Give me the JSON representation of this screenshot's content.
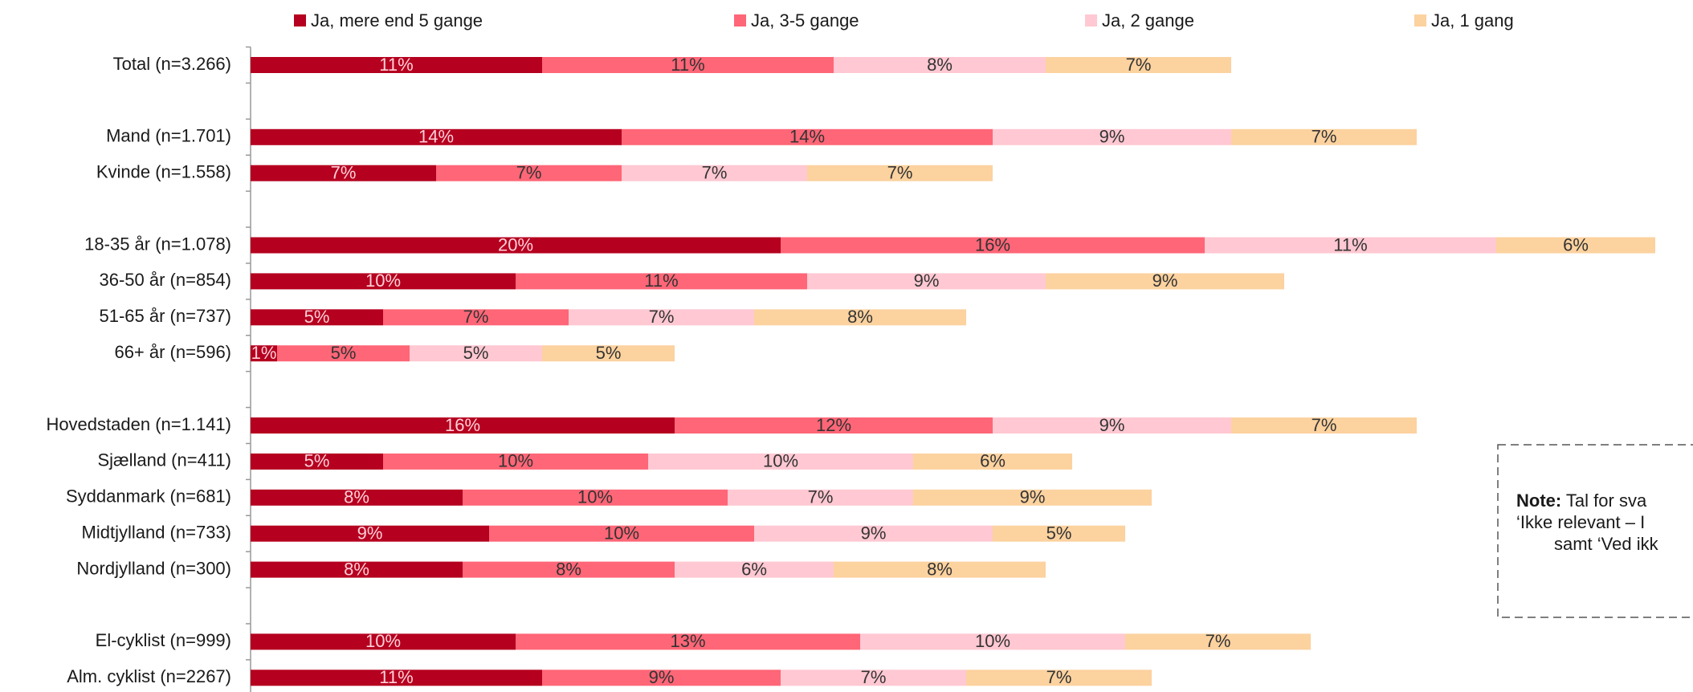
{
  "chart_data": {
    "type": "stacked-bar-horizontal",
    "categories": [
      "Total (n=3.266)",
      null,
      "Mand (n=1.701)",
      "Kvinde (n=1.558)",
      null,
      "18-35 år (n=1.078)",
      "36-50 år (n=854)",
      "51-65 år (n=737)",
      "66+ år (n=596)",
      null,
      "Hovedstaden (n=1.141)",
      "Sjælland (n=411)",
      "Syddanmark (n=681)",
      "Midtjylland (n=733)",
      "Nordjylland (n=300)",
      null,
      "El-cyklist (n=999)",
      "Alm. cyklist (n=2267)"
    ],
    "series": [
      {
        "name": "Ja, mere end 5 gange",
        "color": "#b5001f",
        "values": [
          11,
          null,
          14,
          7,
          null,
          20,
          10,
          5,
          1,
          null,
          16,
          5,
          8,
          9,
          8,
          null,
          10,
          11
        ],
        "value_labels": [
          "11%",
          null,
          "14%",
          "7%",
          null,
          "20%",
          "10%",
          "5%",
          "1%",
          null,
          "16%",
          "5%",
          "8%",
          "9%",
          "8%",
          null,
          "10%",
          "11%"
        ]
      },
      {
        "name": "Ja, 3-5 gange",
        "color": "#ff6677",
        "values": [
          11,
          null,
          14,
          7,
          null,
          16,
          11,
          7,
          5,
          null,
          12,
          10,
          10,
          10,
          8,
          null,
          13,
          9
        ],
        "value_labels": [
          "11%",
          null,
          "14%",
          "7%",
          null,
          "16%",
          "11%",
          "7%",
          "5%",
          null,
          "12%",
          "10%",
          "10%",
          "10%",
          "8%",
          null,
          "13%",
          "9%"
        ]
      },
      {
        "name": "Ja, 2 gange",
        "color": "#ffc8d2",
        "values": [
          8,
          null,
          9,
          7,
          null,
          11,
          9,
          7,
          5,
          null,
          9,
          10,
          7,
          9,
          6,
          null,
          10,
          7
        ],
        "value_labels": [
          "8%",
          null,
          "9%",
          "7%",
          null,
          "11%",
          "9%",
          "7%",
          "5%",
          null,
          "9%",
          "10%",
          "7%",
          "9%",
          "6%",
          null,
          "10%",
          "7%"
        ]
      },
      {
        "name": "Ja, 1 gang",
        "color": "#fcd29f",
        "values": [
          7,
          null,
          7,
          7,
          null,
          6,
          9,
          8,
          5,
          null,
          7,
          6,
          9,
          5,
          8,
          null,
          7,
          7
        ],
        "value_labels": [
          "7%",
          null,
          "7%",
          "7%",
          null,
          "6%",
          "9%",
          "8%",
          "5%",
          null,
          "7%",
          "6%",
          "9%",
          "5%",
          "8%",
          null,
          "7%",
          "7%"
        ]
      }
    ],
    "legend": "top",
    "note": {
      "label": "Note:",
      "lines": [
        " Tal for sva",
        "‘Ikke relevant – I",
        "samt ‘Ved ikk"
      ]
    }
  }
}
